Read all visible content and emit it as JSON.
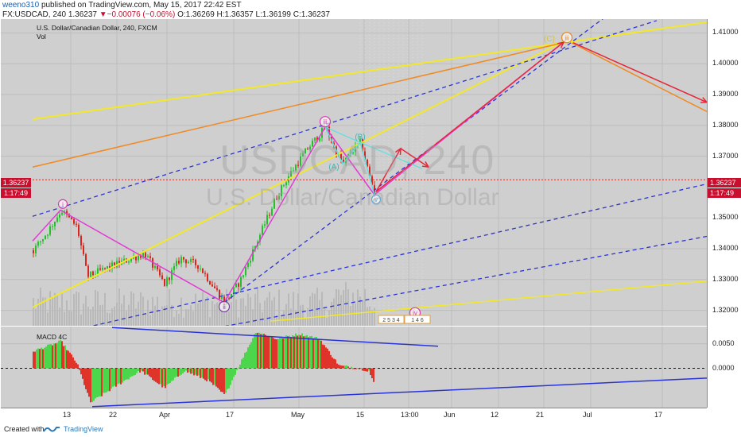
{
  "header": {
    "author": "weeno310",
    "published_text": "published on TradingView.com, May 15, 2017 22:42 EST",
    "symbol_line_prefix": "FX:USDCAD, 240",
    "last": "1.36237",
    "change": "−0.00076 (−0.06%)",
    "ohlc": "O:1.36269 H:1.36357 L:1.36199 C:1.36237"
  },
  "pane": {
    "title": "U.S. Dollar/Canadian Dollar, 240, FXCM",
    "vol_label": "Vol",
    "macd_label": "MACD 4C"
  },
  "watermark": {
    "symbol": "USDCAD, 240",
    "name": "U.S. Dollar/Canadian Dollar"
  },
  "price_tag": {
    "value": "1.36237",
    "countdown": "1:17:49"
  },
  "wave_labels": [
    {
      "text": "i",
      "kind": "circle",
      "color": "#d63cae"
    },
    {
      "text": "ii",
      "kind": "circle",
      "color": "#7a3e9c"
    },
    {
      "text": "iii",
      "kind": "circle",
      "color": "#d63cae"
    },
    {
      "text": "(A)",
      "kind": "plain",
      "color": "#3fb6b6"
    },
    {
      "text": "(B)",
      "kind": "plain",
      "color": "#3fb6b6"
    },
    {
      "text": "v",
      "kind": "circle",
      "color": "#5aa8d8"
    },
    {
      "text": "(C)",
      "kind": "plain",
      "color": "#d4c43a"
    },
    {
      "text": "iii",
      "kind": "circle",
      "color": "#e2882a"
    },
    {
      "text": "iv",
      "kind": "circle",
      "color": "#d63cae"
    }
  ],
  "event_badges": [
    {
      "text": "2 5 3 4"
    },
    {
      "text": "1 4 6"
    }
  ],
  "colors": {
    "up": "#22c02b",
    "down": "#d8261f",
    "macd_up": "#4cd64c",
    "macd_down": "#e0342a"
  },
  "footer": {
    "created": "Created with",
    "brand": "TradingView"
  },
  "chart_data": [
    {
      "type": "candlestick",
      "title": "U.S. Dollar/Canadian Dollar, 240, FXCM",
      "ylim": [
        1.315,
        1.4145
      ],
      "y_ticks": [
        "1.41000",
        "1.40000",
        "1.39000",
        "1.38000",
        "1.37000",
        "1.35000",
        "1.34000",
        "1.33000",
        "1.32000"
      ],
      "x_ticks": [
        "13",
        "22",
        "Apr",
        "17",
        "May",
        "15",
        "13:00",
        "Jun",
        "12",
        "21",
        "Jul",
        "17"
      ],
      "swing_points": [
        {
          "label": "i",
          "price": 1.3525
        },
        {
          "label": "ii",
          "price": 1.3225
        },
        {
          "label": "iii",
          "price": 1.3795
        },
        {
          "label": "(A)",
          "price": 1.3675
        },
        {
          "label": "(B)",
          "price": 1.3745
        },
        {
          "label": "v",
          "price": 1.3575
        },
        {
          "label": "(C)",
          "price": 1.4075
        }
      ],
      "last_price": 1.36237
    },
    {
      "type": "bar",
      "title": "MACD 4C",
      "ylim": [
        -0.008,
        0.0085
      ],
      "y_ticks": [
        "0.0050",
        "0.0000"
      ]
    }
  ]
}
